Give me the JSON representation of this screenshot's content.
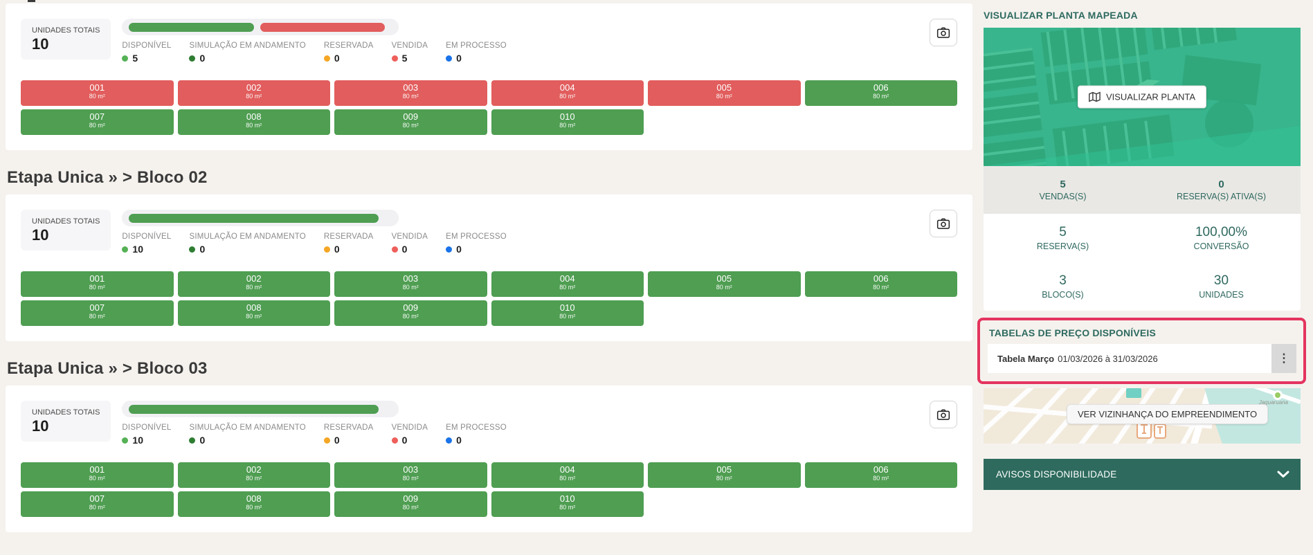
{
  "page": {
    "background": "#f5f2ee",
    "accent_teal": "#2d6a5f",
    "annotation_red": "#e4355f"
  },
  "status_colors": {
    "available": "#4f9e52",
    "sold": "#e25d5d"
  },
  "blocks": [
    {
      "title": "",
      "units_total_label": "UNIDADES TOTAIS",
      "units_total_value": "10",
      "legend": [
        {
          "label": "DISPONÍVEL",
          "value": "5",
          "dot": "#55b155"
        },
        {
          "label": "SIMULAÇÃO EM ANDAMENTO",
          "value": "0",
          "dot": "#2e7d32"
        },
        {
          "label": "RESERVADA",
          "value": "0",
          "dot": "#f5a623"
        },
        {
          "label": "VENDIDA",
          "value": "5",
          "dot": "#ee5f5b"
        },
        {
          "label": "EM PROCESSO",
          "value": "0",
          "dot": "#1a73e8"
        }
      ],
      "progress_segments": [
        {
          "status": "available",
          "pct": 47.5
        },
        {
          "status": "sold",
          "pct": 47.5
        }
      ],
      "units": [
        {
          "num": "001",
          "area": "80 m²",
          "status": "sold"
        },
        {
          "num": "002",
          "area": "80 m²",
          "status": "sold"
        },
        {
          "num": "003",
          "area": "80 m²",
          "status": "sold"
        },
        {
          "num": "004",
          "area": "80 m²",
          "status": "sold"
        },
        {
          "num": "005",
          "area": "80 m²",
          "status": "sold"
        },
        {
          "num": "006",
          "area": "80 m²",
          "status": "available"
        },
        {
          "num": "007",
          "area": "80 m²",
          "status": "available"
        },
        {
          "num": "008",
          "area": "80 m²",
          "status": "available"
        },
        {
          "num": "009",
          "area": "80 m²",
          "status": "available"
        },
        {
          "num": "010",
          "area": "80 m²",
          "status": "available"
        }
      ]
    },
    {
      "title": "Etapa Unica » > Bloco 02",
      "units_total_label": "UNIDADES TOTAIS",
      "units_total_value": "10",
      "legend": [
        {
          "label": "DISPONÍVEL",
          "value": "10",
          "dot": "#55b155"
        },
        {
          "label": "SIMULAÇÃO EM ANDAMENTO",
          "value": "0",
          "dot": "#2e7d32"
        },
        {
          "label": "RESERVADA",
          "value": "0",
          "dot": "#f5a623"
        },
        {
          "label": "VENDIDA",
          "value": "0",
          "dot": "#ee5f5b"
        },
        {
          "label": "EM PROCESSO",
          "value": "0",
          "dot": "#1a73e8"
        }
      ],
      "progress_segments": [
        {
          "status": "available",
          "pct": 95
        }
      ],
      "units": [
        {
          "num": "001",
          "area": "80 m²",
          "status": "available"
        },
        {
          "num": "002",
          "area": "80 m²",
          "status": "available"
        },
        {
          "num": "003",
          "area": "80 m²",
          "status": "available"
        },
        {
          "num": "004",
          "area": "80 m²",
          "status": "available"
        },
        {
          "num": "005",
          "area": "80 m²",
          "status": "available"
        },
        {
          "num": "006",
          "area": "80 m²",
          "status": "available"
        },
        {
          "num": "007",
          "area": "80 m²",
          "status": "available"
        },
        {
          "num": "008",
          "area": "80 m²",
          "status": "available"
        },
        {
          "num": "009",
          "area": "80 m²",
          "status": "available"
        },
        {
          "num": "010",
          "area": "80 m²",
          "status": "available"
        }
      ]
    },
    {
      "title": "Etapa Unica » > Bloco 03",
      "units_total_label": "UNIDADES TOTAIS",
      "units_total_value": "10",
      "legend": [
        {
          "label": "DISPONÍVEL",
          "value": "10",
          "dot": "#55b155"
        },
        {
          "label": "SIMULAÇÃO EM ANDAMENTO",
          "value": "0",
          "dot": "#2e7d32"
        },
        {
          "label": "RESERVADA",
          "value": "0",
          "dot": "#f5a623"
        },
        {
          "label": "VENDIDA",
          "value": "0",
          "dot": "#ee5f5b"
        },
        {
          "label": "EM PROCESSO",
          "value": "0",
          "dot": "#1a73e8"
        }
      ],
      "progress_segments": [
        {
          "status": "available",
          "pct": 95
        }
      ],
      "units": [
        {
          "num": "001",
          "area": "80 m²",
          "status": "available"
        },
        {
          "num": "002",
          "area": "80 m²",
          "status": "available"
        },
        {
          "num": "003",
          "area": "80 m²",
          "status": "available"
        },
        {
          "num": "004",
          "area": "80 m²",
          "status": "available"
        },
        {
          "num": "005",
          "area": "80 m²",
          "status": "available"
        },
        {
          "num": "006",
          "area": "80 m²",
          "status": "available"
        },
        {
          "num": "007",
          "area": "80 m²",
          "status": "available"
        },
        {
          "num": "008",
          "area": "80 m²",
          "status": "available"
        },
        {
          "num": "009",
          "area": "80 m²",
          "status": "available"
        },
        {
          "num": "010",
          "area": "80 m²",
          "status": "available"
        }
      ]
    }
  ],
  "right_panel": {
    "planta": {
      "title": "VISUALIZAR PLANTA MAPEADA",
      "button_label": "VISUALIZAR PLANTA"
    },
    "stats_rows": [
      {
        "cells": [
          {
            "value": "5",
            "label": "VENDAS(S)"
          },
          {
            "value": "0",
            "label": "RESERVA(S) ATIVA(S)"
          }
        ]
      },
      {
        "cells": [
          {
            "value": "5",
            "label": "RESERVA(S)"
          },
          {
            "value": "100,00%",
            "label": "CONVERSÃO"
          }
        ]
      },
      {
        "cells": [
          {
            "value": "3",
            "label": "BLOCO(S)"
          },
          {
            "value": "30",
            "label": "UNIDADES"
          }
        ]
      }
    ],
    "price_tables": {
      "title": "TABELAS DE PREÇO DISPONÍVEIS",
      "row_name": "Tabela Março",
      "row_dates": "01/03/2026 à 31/03/2026",
      "kebab_icon": "⋮"
    },
    "map": {
      "button_label": "VER VIZINHANÇA DO EMPREENDIMENTO",
      "place_label": "Jaguaruana"
    },
    "avisos": {
      "label": "AVISOS DISPONIBILIDADE"
    }
  }
}
